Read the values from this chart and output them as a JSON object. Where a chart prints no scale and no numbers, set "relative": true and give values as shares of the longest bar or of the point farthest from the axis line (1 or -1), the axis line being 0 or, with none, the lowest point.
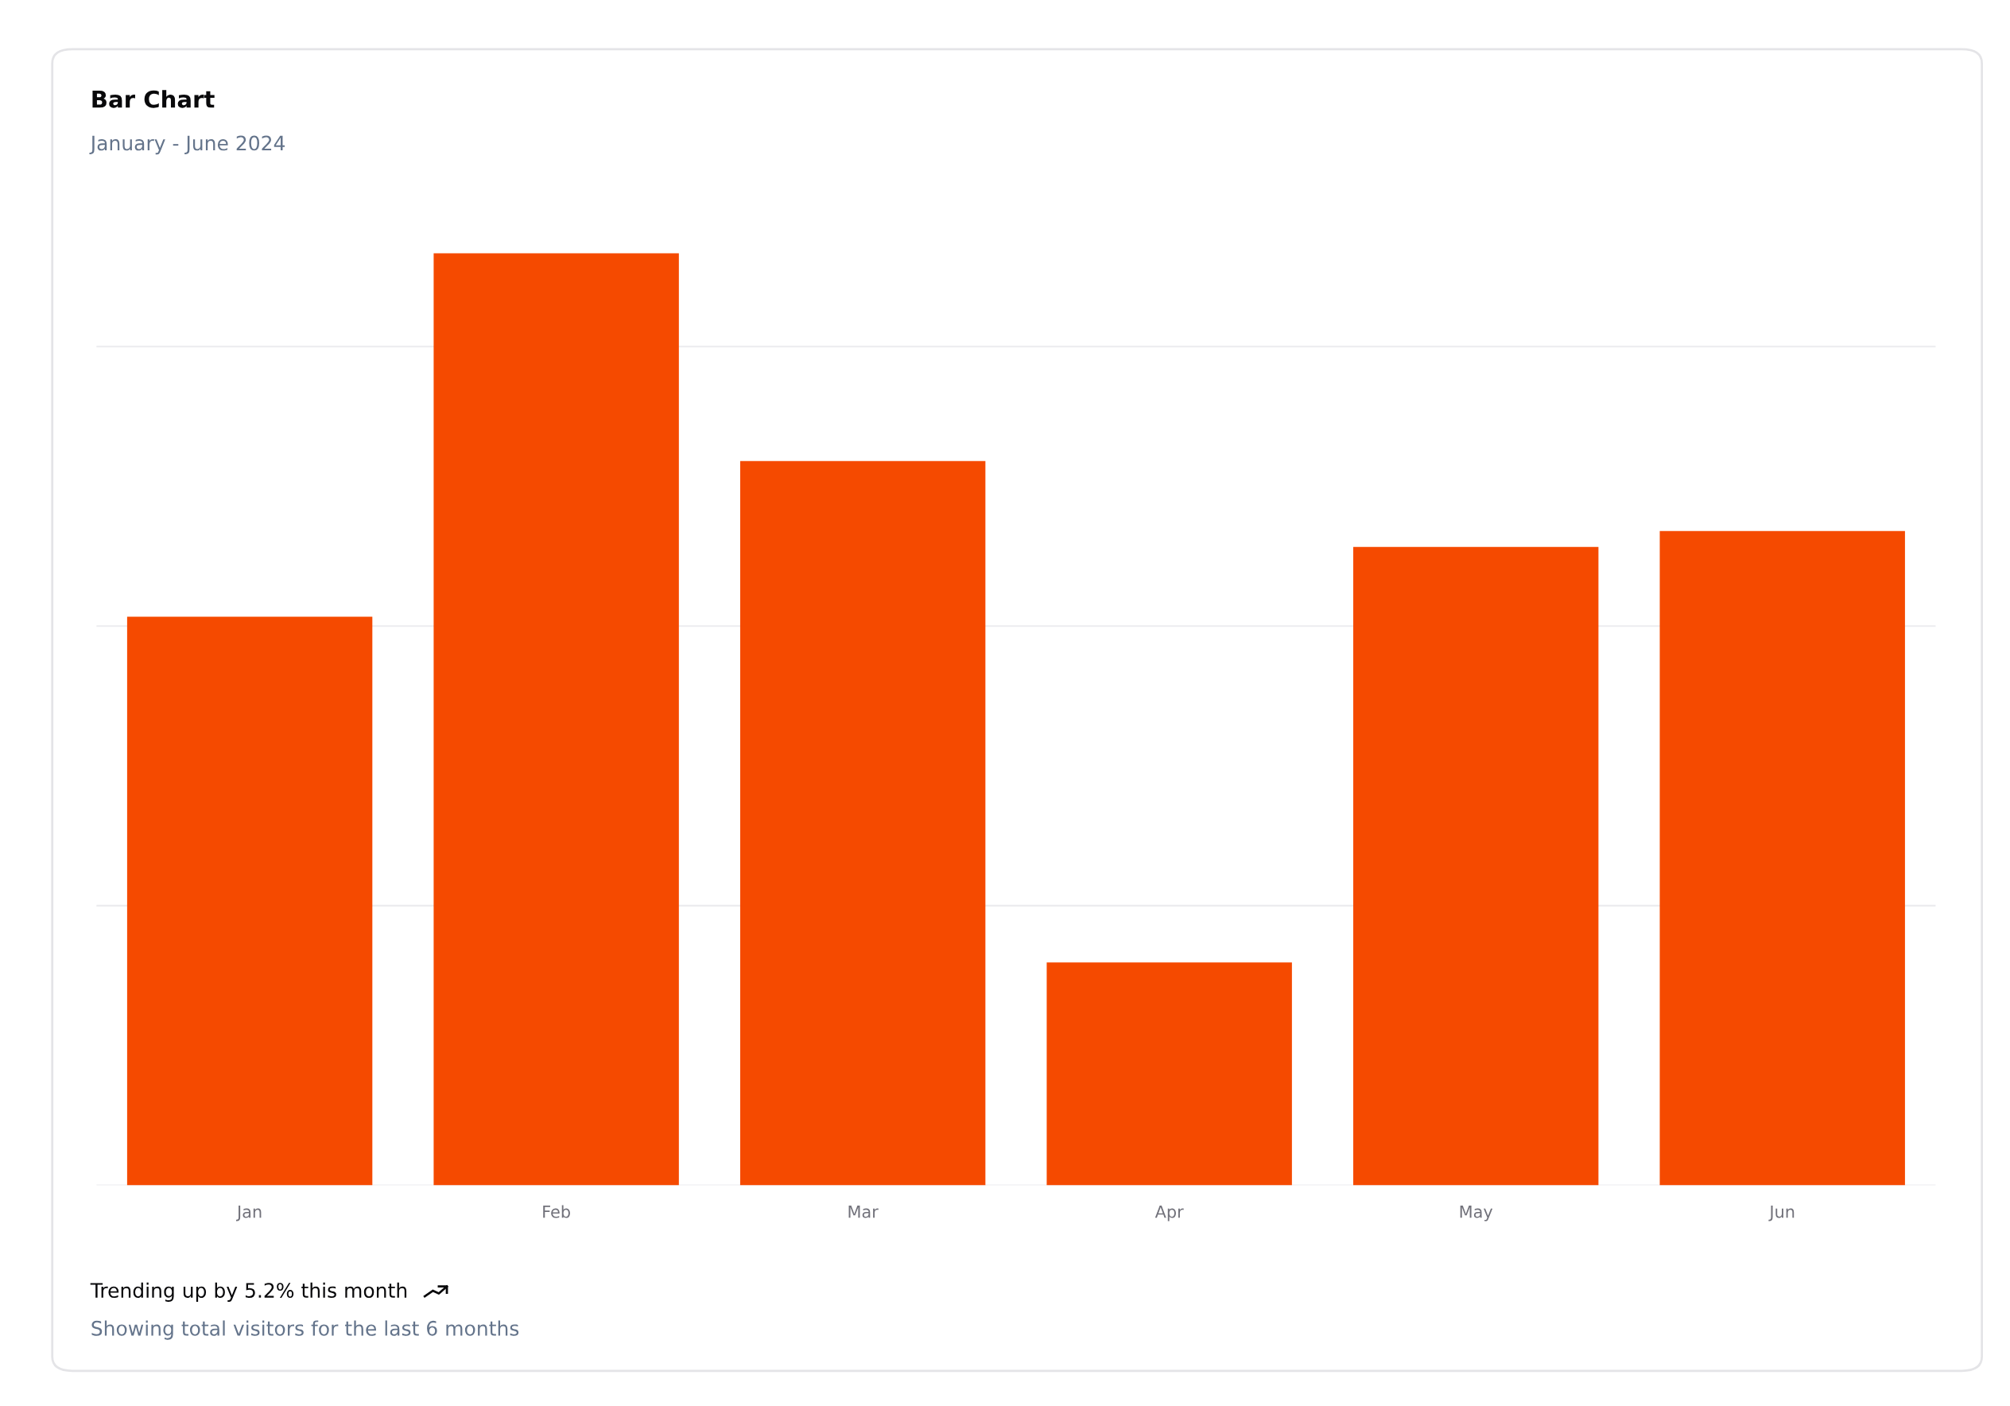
{
  "chart_data": {
    "type": "bar",
    "title": "Bar Chart",
    "subtitle": "January - June 2024",
    "categories": [
      "Jan",
      "Feb",
      "Mar",
      "Apr",
      "May",
      "Jun"
    ],
    "values": [
      0.61,
      1,
      0.777,
      0.239,
      0.685,
      0.702
    ],
    "color": "#f54a00",
    "relative": true,
    "grid": "y",
    "annotations": [
      "Trending up by 5.2% this month",
      "Showing total visitors for the last 6 months"
    ]
  }
}
